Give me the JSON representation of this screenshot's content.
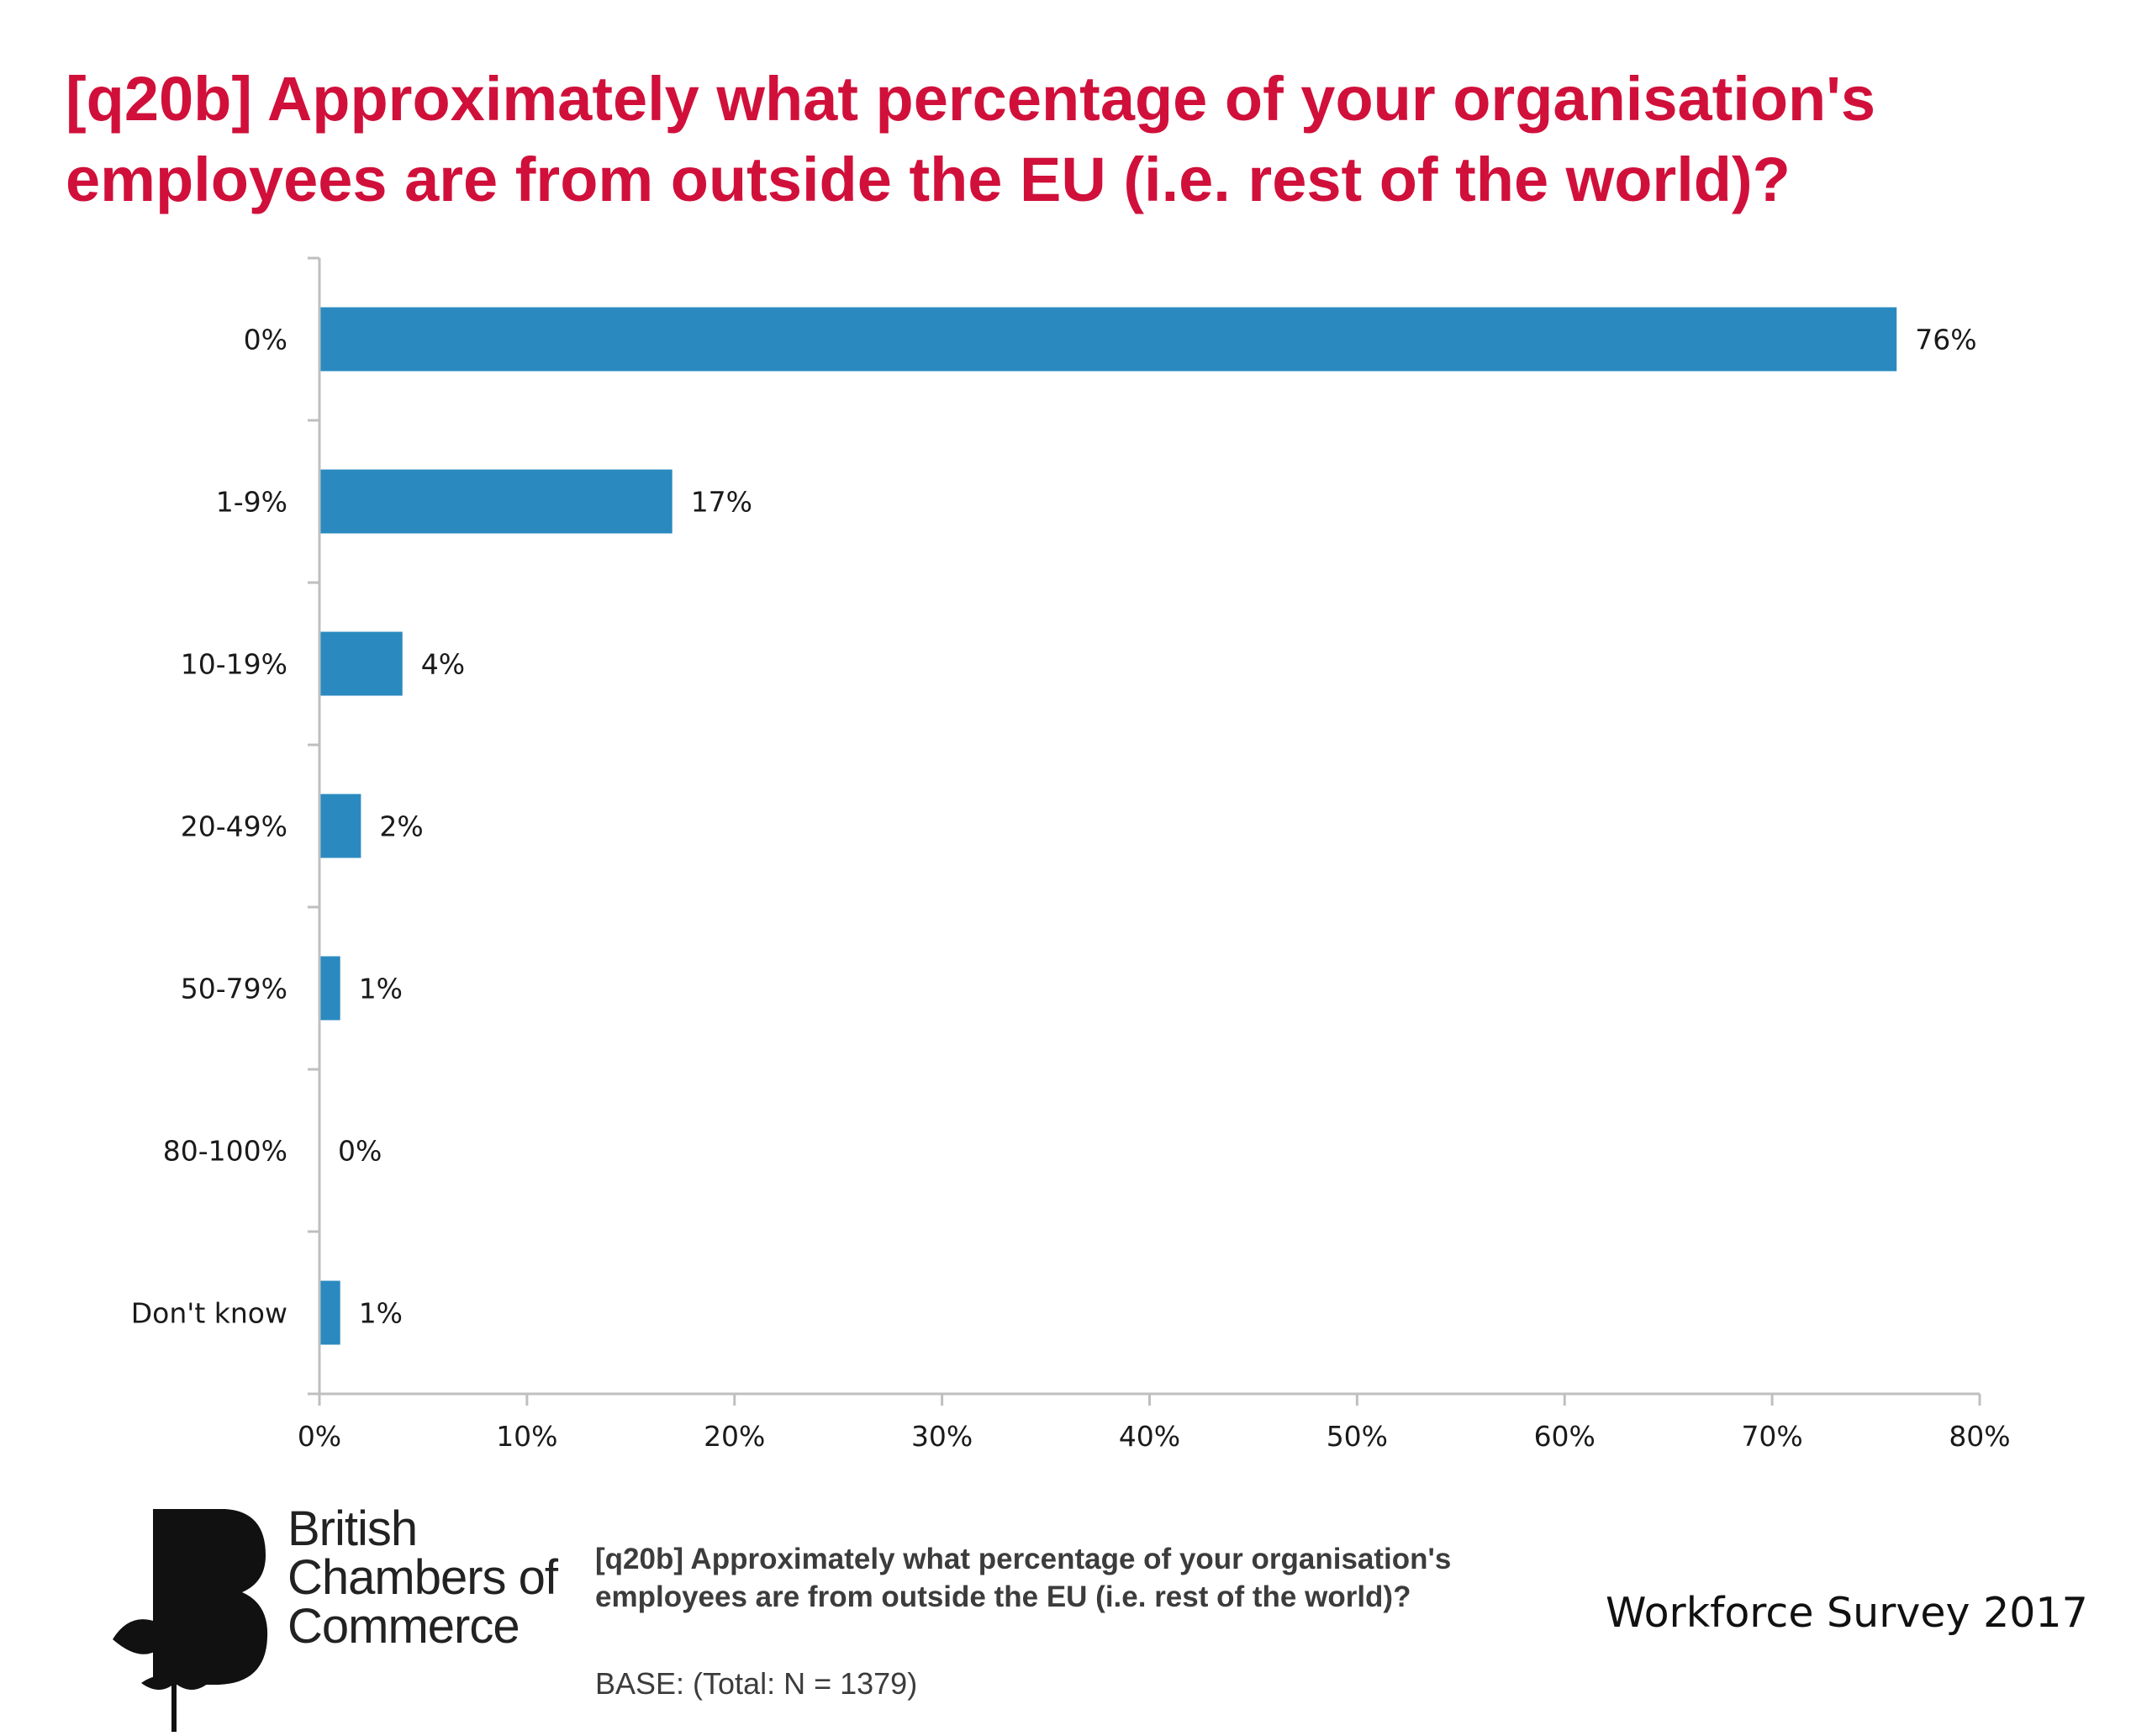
{
  "header": {
    "title": "[q20b] Approximately what percentage of your organisation's employees are from outside the EU (i.e. rest of the world)?"
  },
  "chart_data": {
    "type": "bar",
    "orientation": "horizontal",
    "categories": [
      "0%",
      "1-9%",
      "10-19%",
      "20-49%",
      "50-79%",
      "80-100%",
      "Don't know"
    ],
    "values": [
      76,
      17,
      4,
      2,
      1,
      0,
      1
    ],
    "value_labels": [
      "76%",
      "17%",
      "4%",
      "2%",
      "1%",
      "0%",
      "1%"
    ],
    "x_ticks": [
      "0%",
      "10%",
      "20%",
      "30%",
      "40%",
      "50%",
      "60%",
      "70%",
      "80%"
    ],
    "xlim": [
      0,
      80
    ],
    "title": "",
    "xlabel": "",
    "ylabel": "",
    "grid": false,
    "legend": "none",
    "bar_color": "#2a8abf"
  },
  "footer": {
    "logo_lines": [
      "British",
      "Chambers of",
      "Commerce"
    ],
    "question": "[q20b] Approximately what percentage of your organisation's employees are from outside the EU (i.e. rest of the world)?",
    "base": "BASE: (Total: N = 1379)",
    "survey": "Workforce Survey 2017"
  },
  "colors": {
    "title": "#d0103a",
    "bar": "#2a8abf",
    "axis": "#bfbfbf"
  }
}
